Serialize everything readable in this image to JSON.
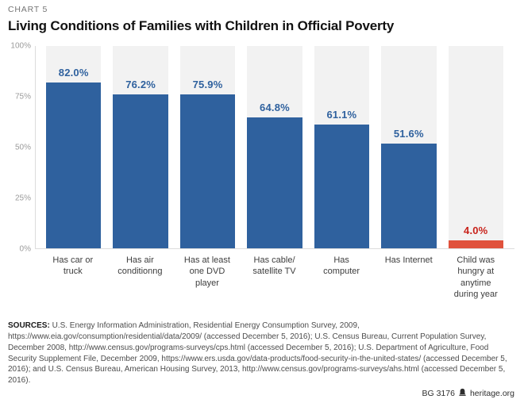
{
  "header": {
    "eyebrow": "CHART 5",
    "title": "Living Conditions of Families with Children in Official Poverty"
  },
  "chart_data": {
    "type": "bar",
    "title": "Living Conditions of Families with Children in Official Poverty",
    "categories": [
      "Has car or\ntruck",
      "Has air\nconditionng",
      "Has at least\none DVD\nplayer",
      "Has cable/\nsatellite TV",
      "Has\ncomputer",
      "Has Internet",
      "Child was\nhungry at\nanytime\nduring year"
    ],
    "values": [
      82.0,
      76.2,
      75.9,
      64.8,
      61.1,
      51.6,
      4.0
    ],
    "value_labels": [
      "82.0%",
      "76.2%",
      "75.9%",
      "64.8%",
      "61.1%",
      "51.6%",
      "4.0%"
    ],
    "bar_colors": [
      "#2f619e",
      "#2f619e",
      "#2f619e",
      "#2f619e",
      "#2f619e",
      "#2f619e",
      "#e0523c"
    ],
    "value_label_colors": [
      "#2f619e",
      "#2f619e",
      "#2f619e",
      "#2f619e",
      "#2f619e",
      "#2f619e",
      "#c8231b"
    ],
    "y_ticks": [
      "100%",
      "75%",
      "50%",
      "25%",
      "0%"
    ],
    "ylim": [
      0,
      100
    ],
    "xlabel": "",
    "ylabel": "",
    "grid": "off",
    "legend": "none",
    "column_background": "#f2f2f2"
  },
  "colors": {
    "bar_blue": "#2f619e",
    "bar_red": "#e0523c",
    "red_label": "#c8231b",
    "column_bg": "#f2f2f2",
    "axis_line": "#dcdcdc",
    "tick_text": "#9b9b9b"
  },
  "sources": {
    "label": "SOURCES:",
    "text": " U.S. Energy Information Administration, Residential Energy Consumption Survey, 2009, https://www.eia.gov/consumption/residential/data/2009/ (accessed December 5, 2016); U.S. Census Bureau, Current Population Survey, December 2008, http://www.census.gov/programs-surveys/cps.html (accessed December 5, 2016); U.S. Department of Agriculture, Food Security Supplement File, December 2009, https://www.ers.usda.gov/data-products/food-security-in-the-united-states/ (accessed December 5, 2016); and U.S. Census Bureau, American Housing Survey, 2013, http://www.census.gov/programs-surveys/ahs.html (accessed December 5, 2016)."
  },
  "footer": {
    "report_id": "BG 3176",
    "site": "heritage.org",
    "logo": "heritage-bell-icon"
  }
}
